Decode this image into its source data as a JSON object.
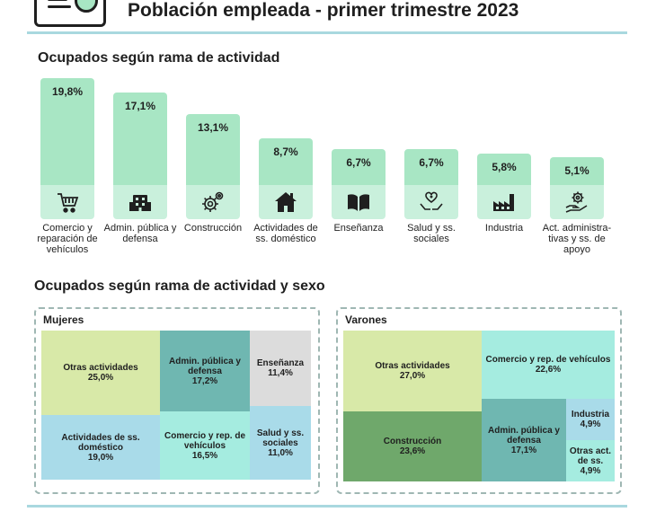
{
  "header": {
    "title": "Población empleada - primer trimestre 2023"
  },
  "sections": {
    "by_activity": "Ocupados según rama de actividad",
    "by_activity_sex": "Ocupados según rama de actividad y sexo"
  },
  "colors": {
    "bar": "#a8e6c4",
    "rule": "#a9d8df",
    "tile_light_green": "#d8e9a8",
    "tile_teal": "#6fb7b1",
    "tile_light_grey": "#dcdcdc",
    "tile_light_blue": "#a9dbe9",
    "tile_aqua": "#a5ece0",
    "tile_dark_green": "#6fa86b"
  },
  "chart_data": [
    {
      "type": "bar",
      "title": "Ocupados según rama de actividad",
      "categories": [
        "Comercio y reparación de vehículos",
        "Admin. pública y defensa",
        "Construcción",
        "Actividades de ss. doméstico",
        "Enseñanza",
        "Salud y ss. sociales",
        "Industria",
        "Act. administra-tivas y ss. de apoyo"
      ],
      "values": [
        19.8,
        17.1,
        13.1,
        8.7,
        6.7,
        6.7,
        5.8,
        5.1
      ],
      "value_labels": [
        "19,8%",
        "17,1%",
        "13,1%",
        "8,7%",
        "6,7%",
        "6,7%",
        "5,8%",
        "5,1%"
      ],
      "icons": [
        "cart-icon",
        "building-icon",
        "gears-icon",
        "house-icon",
        "book-icon",
        "health-hands-icon",
        "factory-icon",
        "gear-hand-icon"
      ],
      "ylim": [
        0,
        20
      ]
    },
    {
      "type": "treemap",
      "title": "Mujeres",
      "tiles": [
        {
          "label": "Otras actividades",
          "value": 25.0,
          "value_label": "25,0%",
          "color": "#d8e9a8"
        },
        {
          "label": "Actividades de ss. doméstico",
          "value": 19.0,
          "value_label": "19,0%",
          "color": "#a9dbe9"
        },
        {
          "label": "Admin. pública y defensa",
          "value": 17.2,
          "value_label": "17,2%",
          "color": "#6fb7b1"
        },
        {
          "label": "Comercio y rep. de vehículos",
          "value": 16.5,
          "value_label": "16,5%",
          "color": "#a5ece0"
        },
        {
          "label": "Enseñanza",
          "value": 11.4,
          "value_label": "11,4%",
          "color": "#dcdcdc"
        },
        {
          "label": "Salud y ss. sociales",
          "value": 11.0,
          "value_label": "11,0%",
          "color": "#a9dbe9"
        }
      ]
    },
    {
      "type": "treemap",
      "title": "Varones",
      "tiles": [
        {
          "label": "Otras actividades",
          "value": 27.0,
          "value_label": "27,0%",
          "color": "#d8e9a8"
        },
        {
          "label": "Construcción",
          "value": 23.6,
          "value_label": "23,6%",
          "color": "#6fa86b"
        },
        {
          "label": "Comercio y rep. de vehículos",
          "value": 22.6,
          "value_label": "22,6%",
          "color": "#a5ece0"
        },
        {
          "label": "Admin. pública y defensa",
          "value": 17.1,
          "value_label": "17,1%",
          "color": "#6fb7b1"
        },
        {
          "label": "Industria",
          "value": 4.9,
          "value_label": "4,9%",
          "color": "#a9dbe9"
        },
        {
          "label": "Otras act. de ss.",
          "value": 4.9,
          "value_label": "4,9%",
          "color": "#a5ece0"
        }
      ]
    }
  ]
}
